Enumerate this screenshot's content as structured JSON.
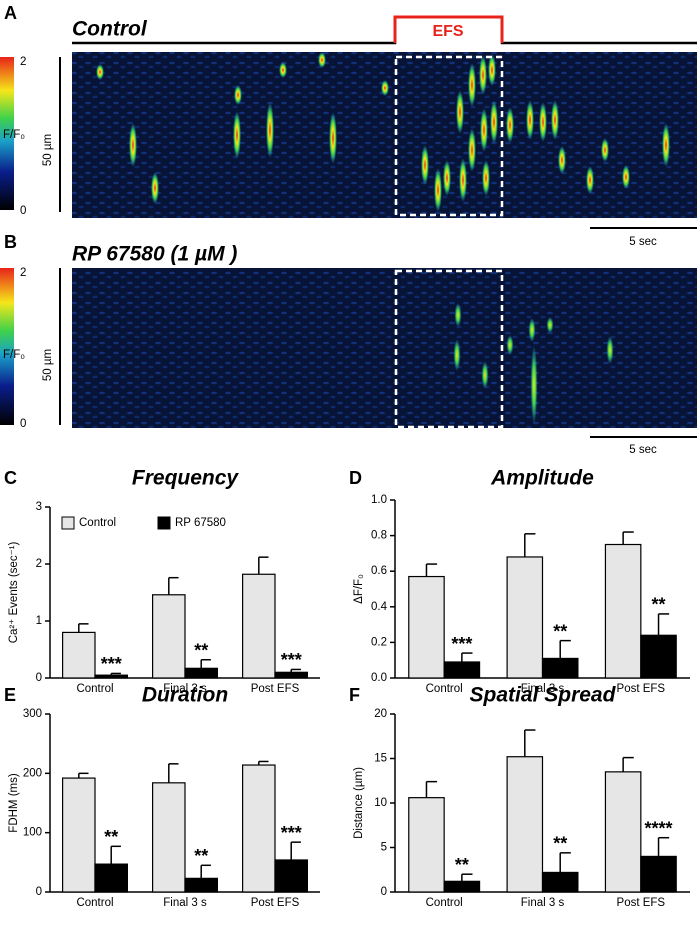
{
  "images": [
    {
      "panel": "A",
      "title": "Control",
      "stimulus": "EFS",
      "colorbar_max": "2",
      "colorbar_min": "0",
      "colorbar_label": "F/F₀",
      "scale_y": "50 µm",
      "scale_x": "5 sec"
    },
    {
      "panel": "B",
      "title": "RP 67580 (1 µM )",
      "colorbar_max": "2",
      "colorbar_min": "0",
      "colorbar_label": "F/F₀",
      "scale_y": "50 µm",
      "scale_x": "5 sec"
    }
  ],
  "chart_data": [
    {
      "type": "bar",
      "panel": "C",
      "title": "Frequency",
      "ylabel": "Ca²⁺ Events (sec⁻¹)",
      "legend": true,
      "categories": [
        "Control",
        "Final 3 s",
        "Post EFS"
      ],
      "series": [
        {
          "name": "Control",
          "color": "#e6e6e6",
          "values": [
            0.8,
            1.46,
            1.82
          ],
          "errors": [
            0.15,
            0.3,
            0.3
          ]
        },
        {
          "name": "RP 67580",
          "color": "#000000",
          "values": [
            0.05,
            0.17,
            0.1
          ],
          "errors": [
            0.03,
            0.15,
            0.05
          ]
        }
      ],
      "annotations": [
        "***",
        "**",
        "***"
      ],
      "ylim": [
        0,
        3
      ],
      "yticks": [
        0,
        1,
        2,
        3
      ]
    },
    {
      "type": "bar",
      "panel": "D",
      "title": "Amplitude",
      "ylabel": "ΔF/F₀",
      "legend": false,
      "categories": [
        "Control",
        "Final 3 s",
        "Post EFS"
      ],
      "series": [
        {
          "name": "Control",
          "color": "#e6e6e6",
          "values": [
            0.57,
            0.68,
            0.75
          ],
          "errors": [
            0.07,
            0.13,
            0.07
          ]
        },
        {
          "name": "RP 67580",
          "color": "#000000",
          "values": [
            0.09,
            0.11,
            0.24
          ],
          "errors": [
            0.05,
            0.1,
            0.12
          ]
        }
      ],
      "annotations": [
        "***",
        "**",
        "**"
      ],
      "ylim": [
        0,
        1
      ],
      "yticks": [
        {
          "value": 0,
          "label": "0.0"
        },
        0.2,
        0.4,
        0.6,
        0.8,
        {
          "value": 1,
          "label": "1.0"
        }
      ]
    },
    {
      "type": "bar",
      "panel": "E",
      "title": "Duration",
      "ylabel": "FDHM (ms)",
      "legend": false,
      "categories": [
        "Control",
        "Final 3 s",
        "Post EFS"
      ],
      "series": [
        {
          "name": "Control",
          "color": "#e6e6e6",
          "values": [
            192,
            184,
            214
          ],
          "errors": [
            8,
            32,
            6
          ]
        },
        {
          "name": "RP 67580",
          "color": "#000000",
          "values": [
            47,
            23,
            54
          ],
          "errors": [
            30,
            22,
            30
          ]
        }
      ],
      "annotations": [
        "**",
        "**",
        "***"
      ],
      "ylim": [
        0,
        300
      ],
      "yticks": [
        0,
        100,
        200,
        300
      ]
    },
    {
      "type": "bar",
      "panel": "F",
      "title": "Spatial Spread",
      "ylabel": "Distance (µm)",
      "legend": false,
      "categories": [
        "Control",
        "Final 3 s",
        "Post EFS"
      ],
      "series": [
        {
          "name": "Control",
          "color": "#e6e6e6",
          "values": [
            10.6,
            15.2,
            13.5
          ],
          "errors": [
            1.8,
            3,
            1.6
          ]
        },
        {
          "name": "RP 67580",
          "color": "#000000",
          "values": [
            1.2,
            2.2,
            4.0
          ],
          "errors": [
            0.8,
            2.2,
            2.1
          ]
        }
      ],
      "annotations": [
        "**",
        "**",
        "****"
      ],
      "ylim": [
        0,
        20
      ],
      "yticks": [
        0,
        5,
        10,
        15,
        20
      ]
    }
  ]
}
